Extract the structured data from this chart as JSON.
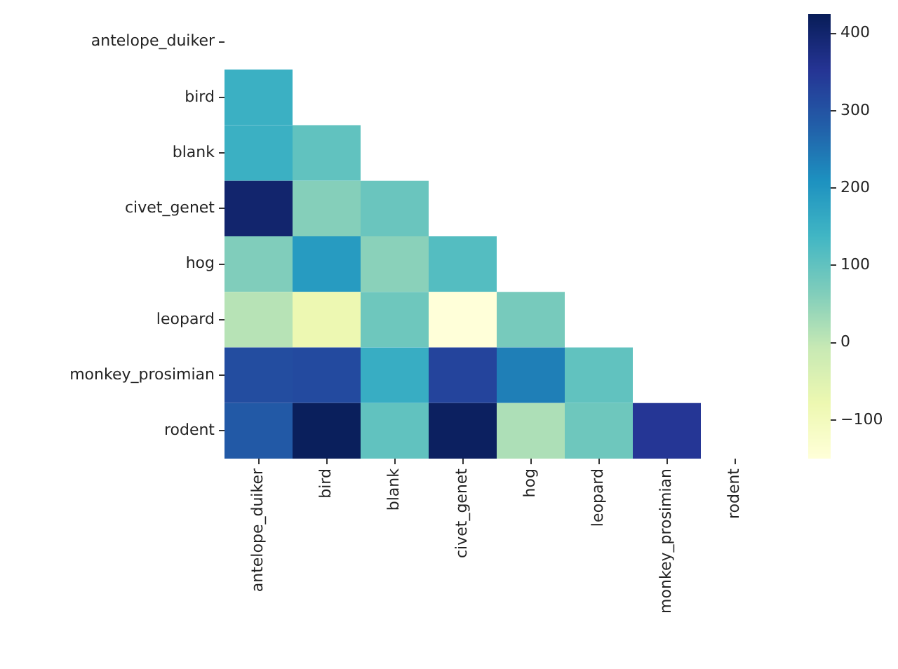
{
  "chart_data": {
    "type": "heatmap",
    "categories": [
      "antelope_duiker",
      "bird",
      "blank",
      "civet_genet",
      "hog",
      "leopard",
      "monkey_prosimian",
      "rodent"
    ],
    "y_categories": [
      "antelope_duiker",
      "bird",
      "blank",
      "civet_genet",
      "hog",
      "leopard",
      "monkey_prosimian",
      "rodent"
    ],
    "cells": [
      [
        null,
        null,
        null,
        null,
        null,
        null,
        null,
        null
      ],
      [
        150,
        null,
        null,
        null,
        null,
        null,
        null,
        null
      ],
      [
        150,
        100,
        null,
        null,
        null,
        null,
        null,
        null
      ],
      [
        400,
        60,
        90,
        null,
        null,
        null,
        null,
        null
      ],
      [
        65,
        190,
        55,
        115,
        null,
        null,
        null,
        null
      ],
      [
        10,
        -80,
        85,
        -150,
        75,
        null,
        null,
        null
      ],
      [
        310,
        315,
        155,
        325,
        235,
        100,
        null,
        null
      ],
      [
        290,
        420,
        100,
        415,
        20,
        85,
        350,
        null
      ]
    ],
    "clim": [
      -150,
      425
    ],
    "cticks": [
      -100,
      0,
      100,
      200,
      300,
      400
    ]
  }
}
